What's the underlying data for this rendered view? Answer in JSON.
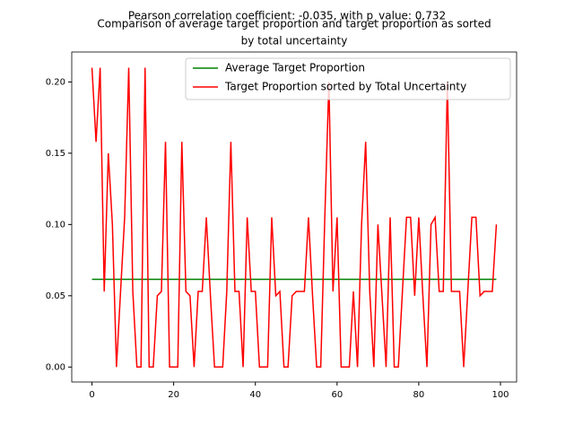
{
  "chart_data": {
    "type": "line",
    "suptitle": "Pearson correlation coefficient: -0.035, with p_value: 0.732",
    "title": [
      "Comparison of average target proportion and target proportion as sorted",
      "by total uncertainty"
    ],
    "series": [
      {
        "name": "Average Target Proportion",
        "color": "#008000",
        "x": [
          0,
          99
        ],
        "values": [
          0.0615,
          0.0615
        ]
      },
      {
        "name": "Target Proportion sorted by Total Uncertainty",
        "color": "#ff0000",
        "x": [
          0,
          1,
          2,
          3,
          4,
          5,
          6,
          7,
          8,
          9,
          10,
          11,
          12,
          13,
          14,
          15,
          16,
          17,
          18,
          19,
          20,
          21,
          22,
          23,
          24,
          25,
          26,
          27,
          28,
          29,
          30,
          31,
          32,
          33,
          34,
          35,
          36,
          37,
          38,
          39,
          40,
          41,
          42,
          43,
          44,
          45,
          46,
          47,
          48,
          49,
          50,
          51,
          52,
          53,
          54,
          55,
          56,
          57,
          58,
          59,
          60,
          61,
          62,
          63,
          64,
          65,
          66,
          67,
          68,
          69,
          70,
          71,
          72,
          73,
          74,
          75,
          76,
          77,
          78,
          79,
          80,
          81,
          82,
          83,
          84,
          85,
          86,
          87,
          88,
          89,
          90,
          91,
          92,
          93,
          94,
          95,
          96,
          97,
          98,
          99
        ],
        "values": [
          0.21,
          0.158,
          0.21,
          0.053,
          0.15,
          0.1,
          0,
          0.053,
          0.105,
          0.21,
          0.053,
          0,
          0,
          0.21,
          0,
          0,
          0.05,
          0.053,
          0.158,
          0,
          0,
          0,
          0.158,
          0.053,
          0.05,
          0,
          0.053,
          0.053,
          0.105,
          0.05,
          0,
          0,
          0,
          0.053,
          0.158,
          0.053,
          0.053,
          0,
          0.105,
          0.053,
          0.053,
          0,
          0,
          0,
          0.105,
          0.05,
          0.053,
          0,
          0,
          0.05,
          0.053,
          0.053,
          0.053,
          0.105,
          0.05,
          0,
          0,
          0.105,
          0.2,
          0.053,
          0.105,
          0,
          0,
          0,
          0.053,
          0,
          0.1,
          0.158,
          0.053,
          0,
          0.1,
          0.05,
          0,
          0.105,
          0,
          0,
          0.053,
          0.105,
          0.105,
          0.05,
          0.105,
          0.05,
          0,
          0.1,
          0.105,
          0.053,
          0.053,
          0.2,
          0.053,
          0.053,
          0.053,
          0,
          0.053,
          0.105,
          0.105,
          0.05,
          0.053,
          0.053,
          0.053,
          0.1
        ]
      }
    ],
    "xlim": [
      -4.95,
      103.95
    ],
    "ylim": [
      -0.0105,
      0.221
    ],
    "xticks": [
      0,
      20,
      40,
      60,
      80,
      100
    ],
    "yticks": [
      {
        "value": 0,
        "label": "0.00"
      },
      {
        "value": 0.05,
        "label": "0.05"
      },
      {
        "value": 0.1,
        "label": "0.10"
      },
      {
        "value": 0.15,
        "label": "0.15"
      },
      {
        "value": 0.2,
        "label": "0.20"
      }
    ],
    "legend": "upper right"
  }
}
